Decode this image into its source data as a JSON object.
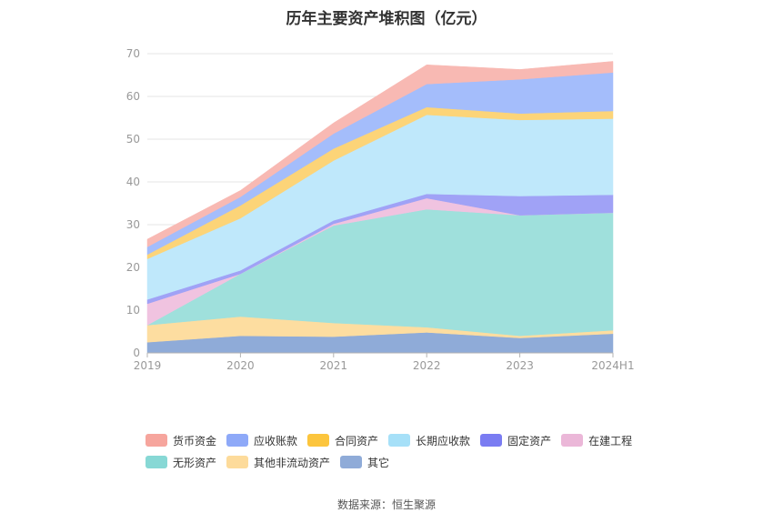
{
  "chart_data": {
    "type": "area",
    "title": "历年主要资产堆积图（亿元）",
    "stacked": true,
    "x": [
      "2019",
      "2020",
      "2021",
      "2022",
      "2023",
      "2024H1"
    ],
    "y_ticks": [
      "0",
      "10",
      "20",
      "30",
      "40",
      "50",
      "60",
      "70"
    ],
    "ylim": [
      0,
      70
    ],
    "grid": true,
    "legend_position": "bottom",
    "series": [
      {
        "name": "其它",
        "color": "#8fabd8",
        "values": [
          2.5,
          4.0,
          3.8,
          4.8,
          3.5,
          4.5
        ]
      },
      {
        "name": "其他非流动资产",
        "color": "#fddda0",
        "values": [
          4.0,
          4.5,
          3.2,
          1.2,
          0.5,
          0.8
        ]
      },
      {
        "name": "无形资产",
        "color": "#9fe0dc",
        "values": [
          0.0,
          10.0,
          22.8,
          27.6,
          28.2,
          27.5
        ]
      },
      {
        "name": "在建工程",
        "color": "#f0c3e0",
        "values": [
          5.0,
          0.0,
          0.4,
          2.6,
          0.0,
          0.0
        ]
      },
      {
        "name": "固定资产",
        "color": "#a0a2f6",
        "values": [
          1.0,
          0.8,
          0.8,
          1.0,
          4.5,
          4.2
        ]
      },
      {
        "name": "长期应收款",
        "color": "#bfe8fb",
        "values": [
          9.5,
          12.2,
          14.0,
          18.5,
          17.8,
          17.8
        ]
      },
      {
        "name": "合同资产",
        "color": "#fcd478",
        "values": [
          1.0,
          3.0,
          2.8,
          1.8,
          1.5,
          1.8
        ]
      },
      {
        "name": "应收账款",
        "color": "#a4bdfb",
        "values": [
          1.8,
          2.0,
          3.5,
          5.4,
          8.0,
          9.0
        ]
      },
      {
        "name": "货币资金",
        "color": "#f8b9b3",
        "values": [
          1.8,
          1.5,
          2.5,
          4.5,
          2.3,
          2.6
        ]
      }
    ],
    "legend_order": [
      "货币资金",
      "应收账款",
      "合同资产",
      "长期应收款",
      "固定资产",
      "在建工程",
      "无形资产",
      "其他非流动资产",
      "其它"
    ],
    "legend_colors": {
      "货币资金": "#f6a59d",
      "应收账款": "#8ea9f8",
      "合同资产": "#fcc53d",
      "长期应收款": "#a6e0f8",
      "固定资产": "#7a7cf2",
      "在建工程": "#ebb7d8",
      "无形资产": "#87d8d5",
      "其他非流动资产": "#fddb9b",
      "其它": "#8fabd8"
    }
  },
  "source_text": "数据来源：恒生聚源"
}
